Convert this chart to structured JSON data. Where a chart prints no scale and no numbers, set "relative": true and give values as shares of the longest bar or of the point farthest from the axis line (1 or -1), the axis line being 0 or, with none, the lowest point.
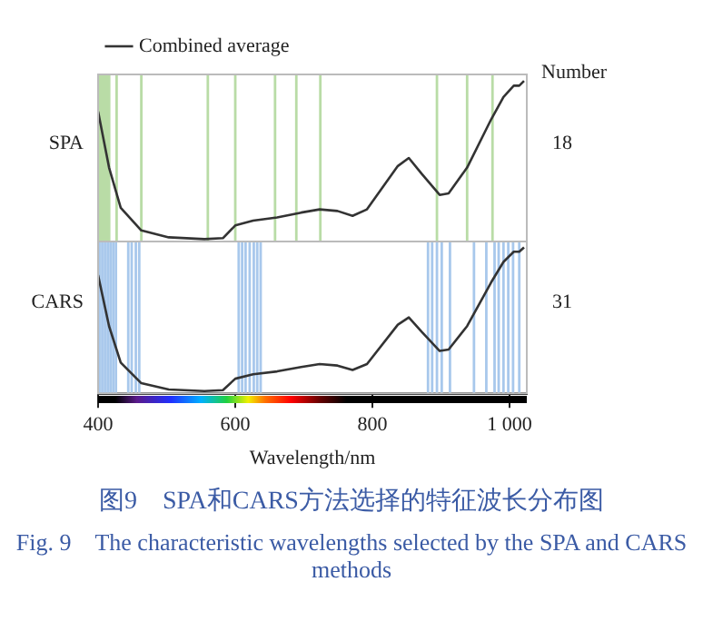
{
  "chart_data": [
    {
      "type": "line",
      "ylabel": "SPA",
      "relative": true,
      "legend": "top left",
      "tick_labels": false,
      "grid": false,
      "marker": "none",
      "line_style": "solid",
      "xlim": [
        400,
        1025
      ],
      "series": [
        {
          "name": "Combined average",
          "color": "#333333",
          "x": [
            400,
            416,
            433,
            463,
            503,
            555,
            582,
            600,
            626,
            661,
            696,
            723,
            749,
            771,
            792,
            837,
            853,
            872,
            898,
            911,
            938,
            973,
            991,
            1006,
            1014,
            1021
          ],
          "values": [
            0.81,
            0.46,
            0.21,
            0.069,
            0.026,
            0.015,
            0.021,
            0.1,
            0.13,
            0.15,
            0.18,
            0.2,
            0.19,
            0.16,
            0.2,
            0.47,
            0.52,
            0.42,
            0.29,
            0.3,
            0.46,
            0.76,
            0.9,
            0.97,
            0.97,
            1
          ]
        }
      ],
      "bands": [
        {
          "axis": "x",
          "from": 400,
          "to": 418,
          "color": "#b9dca6"
        }
      ],
      "ref_lines": [
        {
          "axis": "x",
          "value": 427,
          "color": "#b9dca6"
        },
        {
          "axis": "x",
          "value": 463,
          "color": "#b9dca6"
        },
        {
          "axis": "x",
          "value": 560,
          "color": "#b9dca6"
        },
        {
          "axis": "x",
          "value": 600,
          "color": "#b9dca6"
        },
        {
          "axis": "x",
          "value": 658,
          "color": "#b9dca6"
        },
        {
          "axis": "x",
          "value": 689,
          "color": "#b9dca6"
        },
        {
          "axis": "x",
          "value": 724,
          "color": "#b9dca6"
        },
        {
          "axis": "x",
          "value": 894,
          "color": "#b9dca6"
        },
        {
          "axis": "x",
          "value": 938,
          "color": "#b9dca6"
        },
        {
          "axis": "x",
          "value": 975,
          "color": "#b9dca6"
        }
      ],
      "annotations": [
        "Number",
        "18"
      ]
    },
    {
      "type": "line",
      "ylabel": "CARS",
      "xlabel": "Wavelength/nm",
      "relative": true,
      "grid": false,
      "marker": "none",
      "line_style": "solid",
      "xlim": [
        400,
        1025
      ],
      "xticks": [
        {
          "value": 400,
          "label": "400"
        },
        {
          "value": 600,
          "label": "600"
        },
        {
          "value": 800,
          "label": "800"
        },
        {
          "value": 1000,
          "label": "1 000"
        }
      ],
      "series": [
        {
          "color": "#333333",
          "x": [
            400,
            416,
            433,
            463,
            503,
            555,
            582,
            600,
            626,
            661,
            696,
            723,
            749,
            771,
            792,
            837,
            853,
            872,
            898,
            911,
            938,
            973,
            991,
            1006,
            1014,
            1021
          ],
          "values": [
            0.81,
            0.46,
            0.21,
            0.069,
            0.026,
            0.015,
            0.021,
            0.1,
            0.13,
            0.15,
            0.18,
            0.2,
            0.19,
            0.16,
            0.2,
            0.47,
            0.52,
            0.42,
            0.29,
            0.3,
            0.46,
            0.76,
            0.9,
            0.97,
            0.97,
            1
          ]
        }
      ],
      "ref_lines": [
        {
          "axis": "x",
          "value": 402,
          "color": "#a8c8ec"
        },
        {
          "axis": "x",
          "value": 406,
          "color": "#a8c8ec"
        },
        {
          "axis": "x",
          "value": 410,
          "color": "#a8c8ec"
        },
        {
          "axis": "x",
          "value": 414,
          "color": "#a8c8ec"
        },
        {
          "axis": "x",
          "value": 418,
          "color": "#a8c8ec"
        },
        {
          "axis": "x",
          "value": 422,
          "color": "#a8c8ec"
        },
        {
          "axis": "x",
          "value": 426,
          "color": "#a8c8ec"
        },
        {
          "axis": "x",
          "value": 444,
          "color": "#a8c8ec"
        },
        {
          "axis": "x",
          "value": 449,
          "color": "#a8c8ec"
        },
        {
          "axis": "x",
          "value": 455,
          "color": "#a8c8ec"
        },
        {
          "axis": "x",
          "value": 460,
          "color": "#a8c8ec"
        },
        {
          "axis": "x",
          "value": 605,
          "color": "#a8c8ec"
        },
        {
          "axis": "x",
          "value": 610,
          "color": "#a8c8ec"
        },
        {
          "axis": "x",
          "value": 615,
          "color": "#a8c8ec"
        },
        {
          "axis": "x",
          "value": 621,
          "color": "#a8c8ec"
        },
        {
          "axis": "x",
          "value": 627,
          "color": "#a8c8ec"
        },
        {
          "axis": "x",
          "value": 632,
          "color": "#a8c8ec"
        },
        {
          "axis": "x",
          "value": 637,
          "color": "#a8c8ec"
        },
        {
          "axis": "x",
          "value": 881,
          "color": "#a8c8ec"
        },
        {
          "axis": "x",
          "value": 887,
          "color": "#a8c8ec"
        },
        {
          "axis": "x",
          "value": 894,
          "color": "#a8c8ec"
        },
        {
          "axis": "x",
          "value": 901,
          "color": "#a8c8ec"
        },
        {
          "axis": "x",
          "value": 913,
          "color": "#a8c8ec"
        },
        {
          "axis": "x",
          "value": 948,
          "color": "#a8c8ec"
        },
        {
          "axis": "x",
          "value": 966,
          "color": "#a8c8ec"
        },
        {
          "axis": "x",
          "value": 978,
          "color": "#a8c8ec"
        },
        {
          "axis": "x",
          "value": 984,
          "color": "#a8c8ec"
        },
        {
          "axis": "x",
          "value": 991,
          "color": "#a8c8ec"
        },
        {
          "axis": "x",
          "value": 998,
          "color": "#a8c8ec"
        },
        {
          "axis": "x",
          "value": 1005,
          "color": "#a8c8ec"
        },
        {
          "axis": "x",
          "value": 1014,
          "color": "#a8c8ec"
        }
      ],
      "annotations": [
        "31",
        "图9　SPA和CARS方法选择的特征波长分布图",
        "Fig. 9　The characteristic wavelengths selected by the SPA and CARS methods"
      ]
    }
  ]
}
